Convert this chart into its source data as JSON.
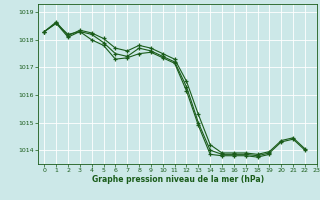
{
  "background_color": "#cce8e8",
  "grid_color": "#ffffff",
  "line_color": "#1a5c1a",
  "marker_color": "#1a5c1a",
  "xlabel": "Graphe pression niveau de la mer (hPa)",
  "xlabel_color": "#1a5c1a",
  "ylim": [
    1013.5,
    1019.3
  ],
  "xlim": [
    -0.5,
    23
  ],
  "yticks": [
    1014,
    1015,
    1016,
    1017,
    1018,
    1019
  ],
  "xticks": [
    0,
    1,
    2,
    3,
    4,
    5,
    6,
    7,
    8,
    9,
    10,
    11,
    12,
    13,
    14,
    15,
    16,
    17,
    18,
    19,
    20,
    21,
    22,
    23
  ],
  "series": [
    [
      1018.3,
      1018.6,
      1018.2,
      1018.3,
      1018.2,
      1017.9,
      1017.5,
      1017.4,
      1017.7,
      1017.6,
      1017.4,
      1017.2,
      1016.3,
      1015.0,
      1014.0,
      1013.85,
      1013.85,
      1013.85,
      1013.8,
      1013.9,
      1014.3,
      1014.4,
      1014.0,
      null
    ],
    [
      1018.3,
      1018.6,
      1018.1,
      1018.3,
      1018.0,
      1017.8,
      1017.3,
      1017.35,
      1017.5,
      1017.55,
      1017.35,
      1017.15,
      1016.15,
      1014.9,
      1013.85,
      1013.8,
      1013.8,
      1013.8,
      1013.75,
      1013.85,
      null,
      null,
      null,
      null
    ],
    [
      1018.3,
      1018.65,
      1018.15,
      1018.35,
      1018.25,
      1018.05,
      1017.7,
      1017.6,
      1017.8,
      1017.7,
      1017.5,
      1017.3,
      1016.5,
      1015.3,
      1014.2,
      1013.9,
      1013.9,
      1013.9,
      1013.85,
      1013.95,
      1014.35,
      1014.45,
      1014.05,
      null
    ]
  ]
}
